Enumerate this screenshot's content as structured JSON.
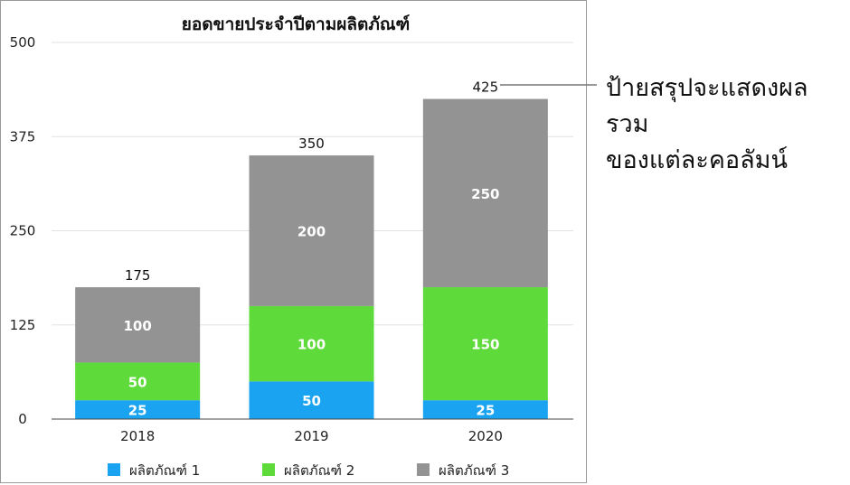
{
  "chart_data": {
    "type": "bar",
    "stacked": true,
    "title": "ยอดขายประจำปีตามผลิตภัณฑ์",
    "categories": [
      "2018",
      "2019",
      "2020"
    ],
    "series": [
      {
        "name": "ผลิตภัณฑ์ 1",
        "values": [
          25,
          50,
          25
        ],
        "color": "#1aa3f0"
      },
      {
        "name": "ผลิตภัณฑ์ 2",
        "values": [
          50,
          100,
          150
        ],
        "color": "#5edb3a"
      },
      {
        "name": "ผลิตภัณฑ์ 3",
        "values": [
          100,
          200,
          250
        ],
        "color": "#939393"
      }
    ],
    "totals": [
      175,
      350,
      425
    ],
    "ylim": [
      0,
      500
    ],
    "yticks": [
      0,
      125,
      250,
      375,
      500
    ],
    "grid": true,
    "legend_position": "bottom"
  },
  "callout": {
    "line1": "ป้ายสรุปจะแสดงผลรวม",
    "line2": "ของแต่ละคอลัมน์"
  }
}
